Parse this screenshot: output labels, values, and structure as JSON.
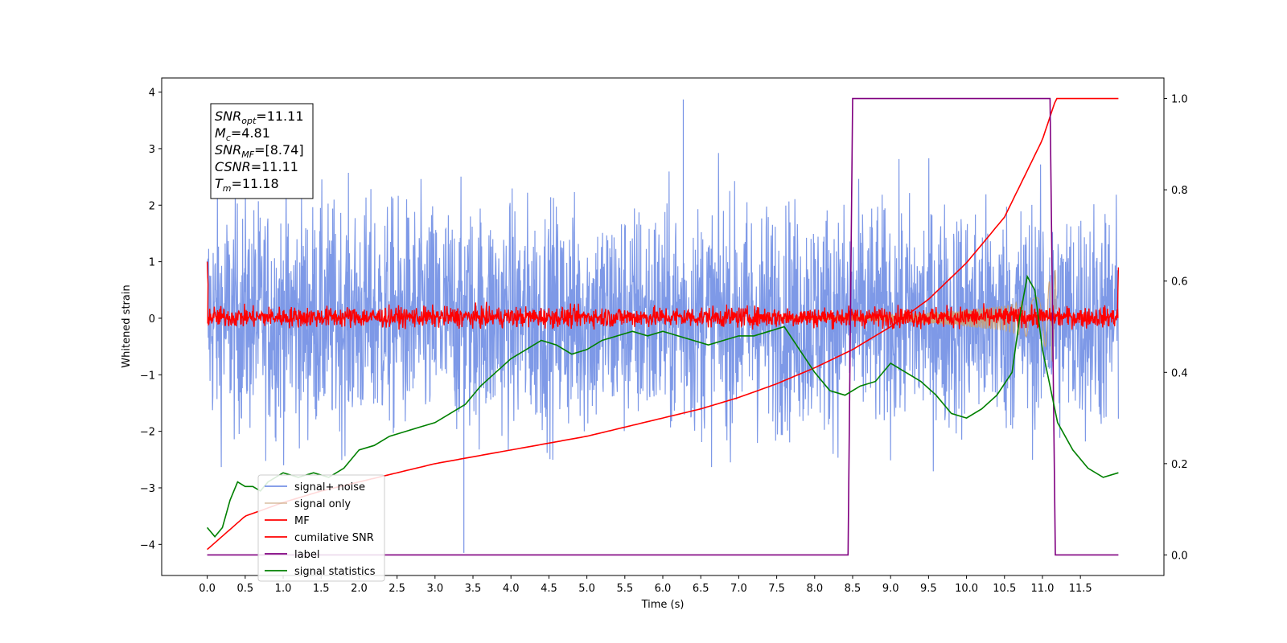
{
  "chart_data": {
    "type": "line",
    "xlabel": "Time (s)",
    "ylabel": "Whitened strain",
    "xlim": [
      -0.6,
      12.6
    ],
    "ylim": [
      -4.55,
      4.25
    ],
    "y2lim": [
      -0.045,
      1.045
    ],
    "xticks": [
      "0.0",
      "0.5",
      "1.0",
      "1.5",
      "2.0",
      "2.5",
      "3.0",
      "3.5",
      "4.0",
      "4.5",
      "5.0",
      "5.5",
      "6.0",
      "6.5",
      "7.0",
      "7.5",
      "8.0",
      "8.5",
      "9.0",
      "9.5",
      "10.0",
      "10.5",
      "11.0",
      "11.5"
    ],
    "yticks": [
      "4",
      "3",
      "2",
      "1",
      "0",
      "−1",
      "−2",
      "−3",
      "−4"
    ],
    "y2ticks": [
      "1.0",
      "0.8",
      "0.6",
      "0.4",
      "0.2",
      "0.0"
    ],
    "grid": false,
    "legend_position": "lower-left",
    "legend": [
      "signal+ noise",
      "signal only",
      "MF",
      "cumilative SNR",
      "label",
      "signal statistics"
    ],
    "annotation": {
      "lines": [
        {
          "main": "SNR",
          "sub": "opt",
          "rest": "=11.11"
        },
        {
          "main": "M",
          "sub": "c",
          "rest": "=4.81"
        },
        {
          "main": "SNR",
          "sub": "MF",
          "rest": "=[8.74]"
        },
        {
          "main": "CSNR",
          "sub": "",
          "rest": "=11.11"
        },
        {
          "main": "T",
          "sub": "m",
          "rest": "=11.18"
        }
      ]
    },
    "series": [
      {
        "name": "signal+ noise",
        "color": "#7793e6",
        "axis": "left",
        "kind": "noise",
        "x_range": [
          0.0,
          12.0
        ],
        "typical_range": [
          -2.7,
          2.7
        ],
        "max": 3.87,
        "min": -4.15
      },
      {
        "name": "signal only",
        "color": "#c8a078",
        "axis": "left",
        "kind": "chirp",
        "x_range": [
          7.5,
          11.18
        ],
        "envelope": [
          [
            7.5,
            0.02
          ],
          [
            8.5,
            0.05
          ],
          [
            9.0,
            0.07
          ],
          [
            9.5,
            0.1
          ],
          [
            10.0,
            0.15
          ],
          [
            10.5,
            0.22
          ],
          [
            11.0,
            0.4
          ],
          [
            11.18,
            0.9
          ]
        ]
      },
      {
        "name": "MF",
        "color": "#ff0000",
        "axis": "left",
        "kind": "noise",
        "x_range": [
          0.0,
          12.0
        ],
        "typical_range": [
          -0.15,
          0.2
        ],
        "max": 0.35,
        "min": -0.2,
        "start_values": [
          1.0,
          0.6
        ],
        "end_values": [
          0.9,
          0.2
        ]
      },
      {
        "name": "cumilative SNR",
        "color": "#ff0000",
        "axis": "right",
        "kind": "curve",
        "x": [
          0.0,
          0.5,
          1.0,
          1.5,
          2.0,
          2.5,
          3.0,
          3.5,
          4.0,
          4.5,
          5.0,
          5.5,
          6.0,
          6.5,
          7.0,
          7.5,
          8.0,
          8.5,
          9.0,
          9.5,
          10.0,
          10.5,
          11.0,
          11.18,
          12.0
        ],
        "y": [
          0.012,
          0.085,
          0.115,
          0.14,
          0.16,
          0.18,
          0.2,
          0.215,
          0.23,
          0.245,
          0.26,
          0.28,
          0.3,
          0.32,
          0.345,
          0.375,
          0.41,
          0.45,
          0.5,
          0.56,
          0.64,
          0.74,
          0.91,
          1.0,
          1.0
        ]
      },
      {
        "name": "label",
        "color": "#800080",
        "axis": "right",
        "kind": "step",
        "x": [
          0.0,
          8.44,
          8.5,
          11.1,
          11.17,
          12.0
        ],
        "y": [
          0.0,
          0.0,
          1.0,
          1.0,
          0.0,
          0.0
        ]
      },
      {
        "name": "signal statistics",
        "color": "#008000",
        "axis": "right",
        "kind": "curve",
        "x": [
          0.0,
          0.1,
          0.2,
          0.3,
          0.4,
          0.5,
          0.6,
          0.7,
          0.8,
          0.9,
          1.0,
          1.2,
          1.4,
          1.6,
          1.8,
          2.0,
          2.2,
          2.4,
          2.6,
          2.8,
          3.0,
          3.2,
          3.4,
          3.6,
          3.8,
          4.0,
          4.2,
          4.4,
          4.6,
          4.8,
          5.0,
          5.2,
          5.4,
          5.6,
          5.8,
          6.0,
          6.2,
          6.4,
          6.6,
          6.8,
          7.0,
          7.2,
          7.4,
          7.6,
          7.8,
          8.0,
          8.2,
          8.4,
          8.6,
          8.8,
          9.0,
          9.2,
          9.4,
          9.6,
          9.8,
          10.0,
          10.2,
          10.4,
          10.6,
          10.7,
          10.8,
          10.9,
          11.0,
          11.2,
          11.4,
          11.6,
          11.8,
          12.0
        ],
        "y": [
          0.06,
          0.04,
          0.06,
          0.12,
          0.16,
          0.15,
          0.15,
          0.14,
          0.16,
          0.17,
          0.18,
          0.17,
          0.18,
          0.17,
          0.19,
          0.23,
          0.24,
          0.26,
          0.27,
          0.28,
          0.29,
          0.31,
          0.33,
          0.37,
          0.4,
          0.43,
          0.45,
          0.47,
          0.46,
          0.44,
          0.45,
          0.47,
          0.48,
          0.49,
          0.48,
          0.49,
          0.48,
          0.47,
          0.46,
          0.47,
          0.48,
          0.48,
          0.49,
          0.5,
          0.45,
          0.4,
          0.36,
          0.35,
          0.37,
          0.38,
          0.42,
          0.4,
          0.38,
          0.35,
          0.31,
          0.3,
          0.32,
          0.35,
          0.4,
          0.52,
          0.61,
          0.58,
          0.45,
          0.29,
          0.23,
          0.19,
          0.17,
          0.18
        ]
      }
    ]
  }
}
